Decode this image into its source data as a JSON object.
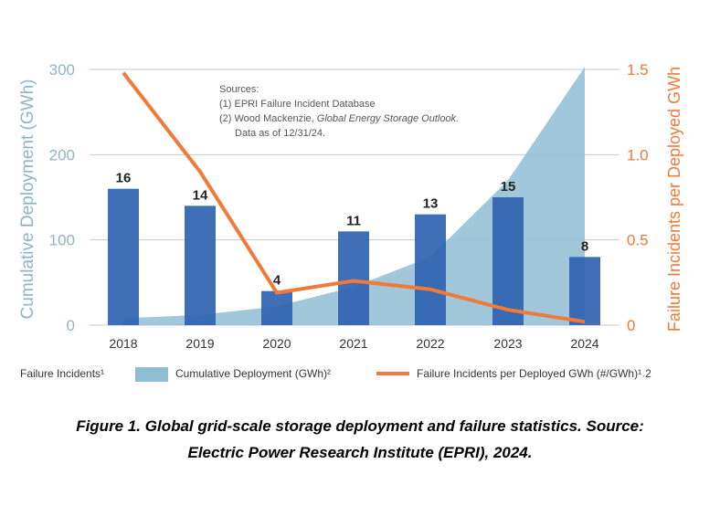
{
  "chart_data": {
    "type": "bar",
    "categories": [
      "2018",
      "2019",
      "2020",
      "2021",
      "2022",
      "2023",
      "2024"
    ],
    "series": [
      {
        "name": "Failure Incidents",
        "legend_label": "Failure Incidents¹",
        "kind": "bar",
        "axis": "left",
        "values": [
          16,
          14,
          4,
          11,
          13,
          15,
          8
        ],
        "color": "#2f63b0"
      },
      {
        "name": "Cumulative Deployment (GWh)",
        "legend_label": "Cumulative Deployment (GWh)²",
        "kind": "area",
        "axis": "left",
        "values": [
          8,
          12,
          22,
          45,
          80,
          170,
          303
        ],
        "color": "#8fbdd3"
      },
      {
        "name": "Failure Incidents per Deployed GWh (#/GWh)",
        "legend_label": "Failure Incidents per Deployed GWh (#/GWh)¹˒2",
        "kind": "line",
        "axis": "right",
        "values": [
          1.48,
          0.9,
          0.19,
          0.26,
          0.21,
          0.09,
          0.02
        ],
        "color": "#f07a3a"
      }
    ],
    "ylabel": "Cumulative Deployment (GWh)",
    "ylabel_right": "Failure Incidents per Deployed GWh",
    "ylim": [
      0,
      300
    ],
    "ylim_right": [
      0,
      1.5
    ],
    "yticks": [
      "0",
      "100",
      "200",
      "300"
    ],
    "yticks_right": [
      "0",
      "0.5",
      "1.0",
      "1.5"
    ],
    "bar_labels": [
      "16",
      "14",
      "4",
      "11",
      "13",
      "15",
      "8"
    ],
    "annotation": {
      "line1": "Sources:",
      "line2": "(1) EPRI Failure Incident Database",
      "line3_prefix": "(2) Wood Mackenzie, ",
      "line3_italic": "Global Energy Storage Outlook.",
      "line4": "Data as of 12/31/24."
    },
    "legend_placement": "bottom",
    "grid": "horizontal"
  },
  "colors": {
    "left_axis": "#8fb4c6",
    "right_axis": "#f07a3a",
    "grid": "#c8c8c8",
    "text": "#333333"
  },
  "caption": {
    "line1": "Figure 1. Global grid-scale storage deployment and failure statistics. Source:",
    "line2": "Electric Power Research Institute (EPRI), 2024."
  }
}
